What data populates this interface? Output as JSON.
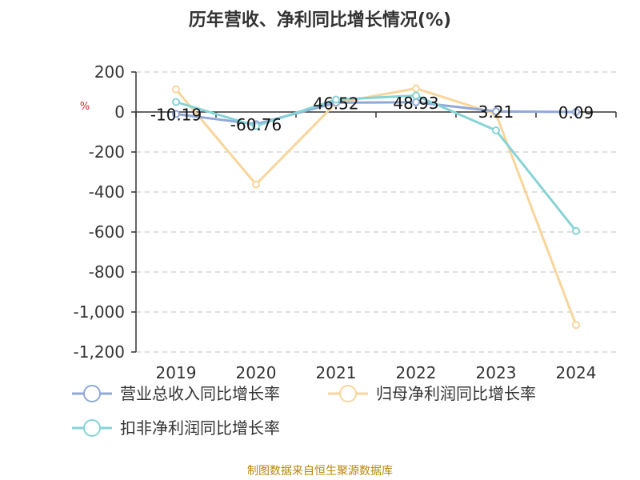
{
  "chart_data": {
    "type": "line",
    "title": "历年营收、净利同比增长情况(%)",
    "y_unit": "%",
    "categories": [
      "2019",
      "2020",
      "2021",
      "2022",
      "2023",
      "2024"
    ],
    "ylim": [
      -1200,
      200
    ],
    "yticks": [
      200,
      0,
      -200,
      -400,
      -600,
      -800,
      -1000,
      -1200
    ],
    "ytick_labels": [
      "200",
      "0",
      "-200",
      "-400",
      "-600",
      "-800",
      "-1,000",
      "-1,200"
    ],
    "grid": true,
    "legend_position": "bottom",
    "series": [
      {
        "name": "营业总收入同比增长率",
        "color": "#8fa8d8",
        "values": [
          -10.19,
          -60.76,
          46.52,
          48.93,
          3.21,
          0.09
        ],
        "labels": [
          "-10.19",
          "-60.76",
          "46.52",
          "48.93",
          "3.21",
          "0.09"
        ]
      },
      {
        "name": "归母净利润同比增长率",
        "color": "#f8d59a",
        "values": [
          113,
          -362,
          45,
          118,
          -10,
          -1065
        ]
      },
      {
        "name": "扣非净利润同比增长率",
        "color": "#86d3d6",
        "values": [
          50,
          -70,
          62,
          82,
          -92,
          -595
        ]
      }
    ]
  },
  "source": "制图数据来自恒生聚源数据库"
}
